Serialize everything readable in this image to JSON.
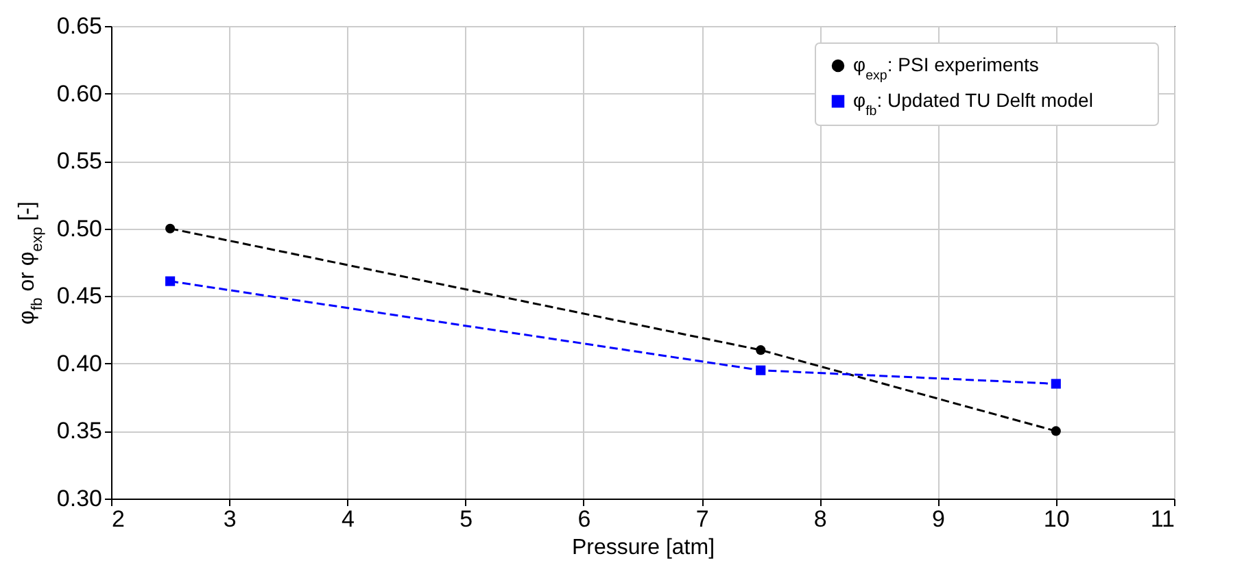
{
  "chart_data": {
    "type": "line",
    "xlabel": "Pressure [atm]",
    "ylabel": "φ$_{fb}$ or φ$_{exp}$ [-]",
    "x": [
      2.5,
      7.5,
      10
    ],
    "series": [
      {
        "name": "φ$_{exp}$: PSI experiments",
        "color": "#000000",
        "values": [
          0.5,
          0.41,
          0.35
        ],
        "marker": "circle"
      },
      {
        "name": "φ$_{fb}$: Updated TU Delft model",
        "color": "#0000ff",
        "values": [
          0.461,
          0.395,
          0.385
        ],
        "marker": "square"
      }
    ],
    "xlim": [
      2,
      11
    ],
    "xticks": [
      2,
      3,
      4,
      5,
      6,
      7,
      8,
      9,
      10,
      11
    ],
    "ylim": [
      0.3,
      0.65
    ],
    "yticks": [
      {
        "value": 0.3,
        "label": "0.30"
      },
      {
        "value": 0.35,
        "label": "0.35"
      },
      {
        "value": 0.4,
        "label": "0.40"
      },
      {
        "value": 0.45,
        "label": "0.45"
      },
      {
        "value": 0.5,
        "label": "0.50"
      },
      {
        "value": 0.55,
        "label": "0.55"
      },
      {
        "value": 0.6,
        "label": "0.60"
      },
      {
        "value": 0.65,
        "label": "0.65"
      }
    ],
    "grid": true,
    "legend": "top right",
    "line_style": "dashed"
  }
}
